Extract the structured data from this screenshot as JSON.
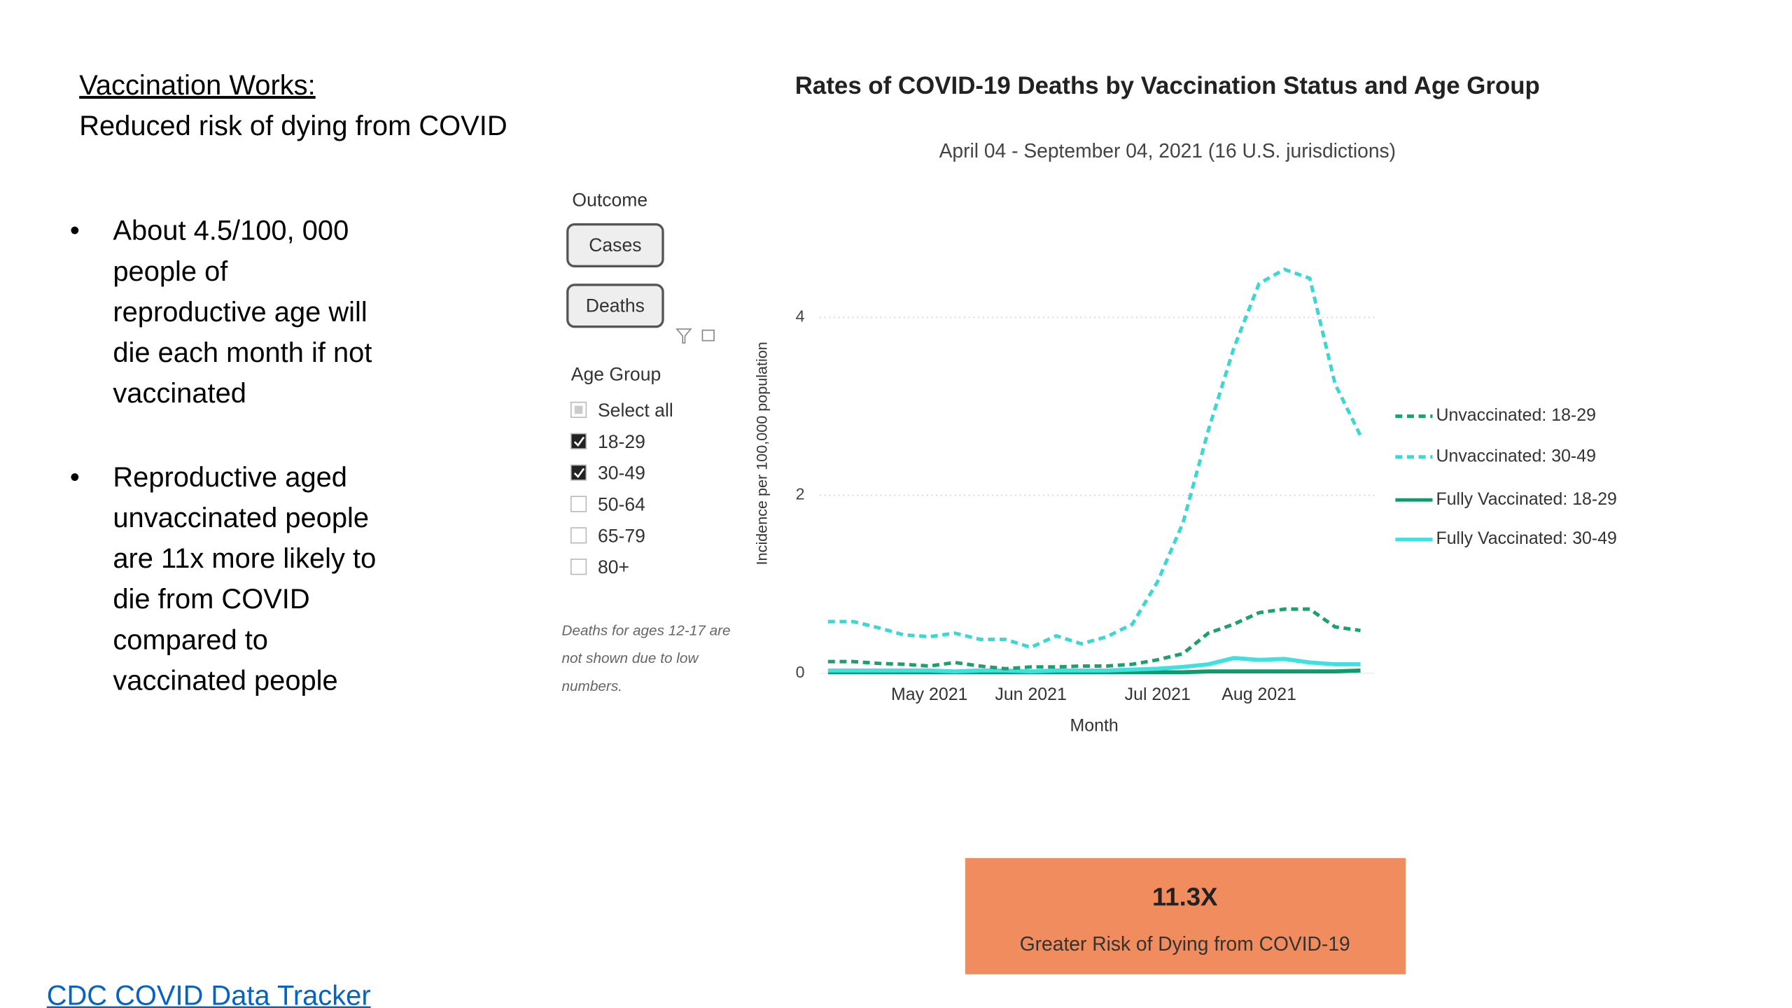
{
  "slide": {
    "heading": "Vaccination Works:",
    "subheading": "Reduced risk of dying from COVID",
    "bullets": [
      [
        "About 4.5/100, 000",
        "people of",
        "reproductive age will",
        "die each month if not",
        "vaccinated"
      ],
      [
        "Reproductive aged",
        "unvaccinated people",
        "are 11x more likely to",
        "die from COVID",
        "compared to",
        "vaccinated people"
      ]
    ],
    "link": "CDC COVID Data Tracker"
  },
  "filters": {
    "outcome_label": "Outcome",
    "outcome_buttons": [
      "Cases",
      "Deaths"
    ],
    "age_label": "Age Group",
    "age_options": [
      {
        "label": "Select all",
        "checked": false,
        "partial": true
      },
      {
        "label": "18-29",
        "checked": true
      },
      {
        "label": "30-49",
        "checked": true
      },
      {
        "label": "50-64",
        "checked": false
      },
      {
        "label": "65-79",
        "checked": false
      },
      {
        "label": "80+",
        "checked": false
      }
    ],
    "note": [
      "Deaths for ages 12-17 are",
      "not shown due to low",
      "numbers."
    ]
  },
  "card": {
    "value": "11.3X",
    "label": "Greater Risk of Dying from COVID-19",
    "color": "#f08c5e"
  },
  "chart_data": {
    "type": "line",
    "title": "Rates of COVID-19 Deaths by Vaccination Status and Age Group",
    "subtitle": "April 04 - September 04, 2021 (16 U.S. jurisdictions)",
    "x_label": "Month",
    "y_label": "Incidence per 100,000 population",
    "categories": [
      null,
      null,
      null,
      null,
      "May 2021",
      null,
      null,
      null,
      "Jun 2021",
      null,
      null,
      null,
      null,
      "Jul 2021",
      null,
      null,
      null,
      "Aug 2021",
      null,
      null,
      null,
      null
    ],
    "ylim": [
      0,
      4.6
    ],
    "yticks": [
      0,
      2,
      4
    ],
    "grid": true,
    "legend": "right",
    "series": [
      {
        "name": "Unvaccinated: 18-29",
        "color": "#1f9e6e",
        "dashed": true,
        "values": [
          0.13,
          0.13,
          0.11,
          0.1,
          0.08,
          0.12,
          0.08,
          0.05,
          0.07,
          0.07,
          0.08,
          0.08,
          0.1,
          0.15,
          0.22,
          0.45,
          0.55,
          0.68,
          0.72,
          0.72,
          0.52,
          0.48
        ]
      },
      {
        "name": "Unvaccinated: 30-49",
        "color": "#3dd6d3",
        "dashed": true,
        "values": [
          0.58,
          0.58,
          0.51,
          0.43,
          0.41,
          0.45,
          0.38,
          0.38,
          0.29,
          0.42,
          0.33,
          0.41,
          0.55,
          1.03,
          1.69,
          2.73,
          3.65,
          4.38,
          4.54,
          4.44,
          3.25,
          2.67
        ]
      },
      {
        "name": "Fully Vaccinated: 18-29",
        "color": "#119a6e",
        "dashed": false,
        "values": [
          0.01,
          0.01,
          0.01,
          0.01,
          0.01,
          0.01,
          0.01,
          0.01,
          0.01,
          0.01,
          0.01,
          0.01,
          0.01,
          0.01,
          0.01,
          0.02,
          0.02,
          0.02,
          0.02,
          0.02,
          0.02,
          0.03
        ]
      },
      {
        "name": "Fully Vaccinated: 30-49",
        "color": "#3ee0e0",
        "dashed": false,
        "values": [
          0.03,
          0.03,
          0.03,
          0.03,
          0.03,
          0.02,
          0.03,
          0.03,
          0.02,
          0.03,
          0.03,
          0.03,
          0.04,
          0.05,
          0.07,
          0.1,
          0.17,
          0.15,
          0.16,
          0.12,
          0.1,
          0.1
        ]
      }
    ]
  }
}
